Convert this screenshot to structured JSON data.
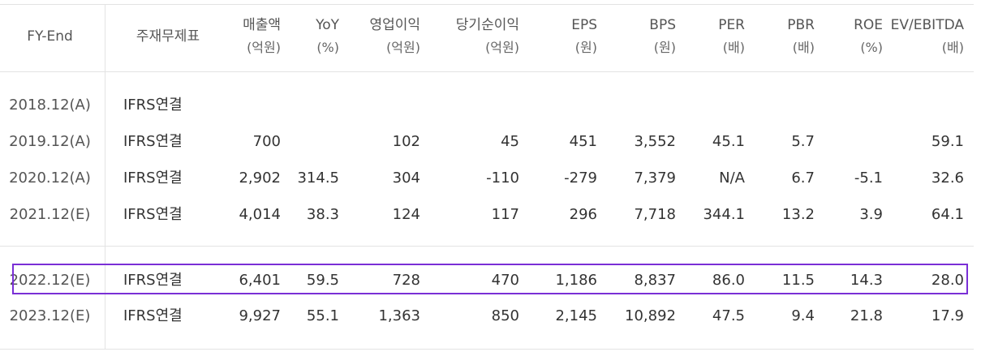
{
  "table": {
    "headers": [
      {
        "key": "fy",
        "line1": "FY-End",
        "line2": ""
      },
      {
        "key": "std",
        "line1": "주재무제표",
        "line2": ""
      },
      {
        "key": "sales",
        "line1": "매출액",
        "line2": "(억원)"
      },
      {
        "key": "yoy",
        "line1": "YoY",
        "line2": "(%)"
      },
      {
        "key": "op",
        "line1": "영업이익",
        "line2": "(억원)"
      },
      {
        "key": "net",
        "line1": "당기순이익",
        "line2": "(억원)"
      },
      {
        "key": "eps",
        "line1": "EPS",
        "line2": "(원)"
      },
      {
        "key": "bps",
        "line1": "BPS",
        "line2": "(원)"
      },
      {
        "key": "per",
        "line1": "PER",
        "line2": "(배)"
      },
      {
        "key": "pbr",
        "line1": "PBR",
        "line2": "(배)"
      },
      {
        "key": "roe",
        "line1": "ROE",
        "line2": "(%)"
      },
      {
        "key": "ev",
        "line1": "EV/EBITDA",
        "line2": "(배)"
      }
    ],
    "rows": [
      {
        "fy": "2018.12(A)",
        "std": "IFRS연결",
        "sales": "",
        "yoy": "",
        "op": "",
        "net": "",
        "eps": "",
        "bps": "",
        "per": "",
        "pbr": "",
        "roe": "",
        "ev": ""
      },
      {
        "fy": "2019.12(A)",
        "std": "IFRS연결",
        "sales": "700",
        "yoy": "",
        "op": "102",
        "net": "45",
        "eps": "451",
        "bps": "3,552",
        "per": "45.1",
        "pbr": "5.7",
        "roe": "",
        "ev": "59.1"
      },
      {
        "fy": "2020.12(A)",
        "std": "IFRS연결",
        "sales": "2,902",
        "yoy": "314.5",
        "op": "304",
        "net": "-110",
        "eps": "-279",
        "bps": "7,379",
        "per": "N/A",
        "pbr": "6.7",
        "roe": "-5.1",
        "ev": "32.6"
      },
      {
        "fy": "2021.12(E)",
        "std": "IFRS연결",
        "sales": "4,014",
        "yoy": "38.3",
        "op": "124",
        "net": "117",
        "eps": "296",
        "bps": "7,718",
        "per": "344.1",
        "pbr": "13.2",
        "roe": "3.9",
        "ev": "64.1"
      },
      {
        "fy": "2022.12(E)",
        "std": "IFRS연결",
        "sales": "6,401",
        "yoy": "59.5",
        "op": "728",
        "net": "470",
        "eps": "1,186",
        "bps": "8,837",
        "per": "86.0",
        "pbr": "11.5",
        "roe": "14.3",
        "ev": "28.0"
      },
      {
        "fy": "2023.12(E)",
        "std": "IFRS연결",
        "sales": "9,927",
        "yoy": "55.1",
        "op": "1,363",
        "net": "850",
        "eps": "2,145",
        "bps": "10,892",
        "per": "47.5",
        "pbr": "9.4",
        "roe": "21.8",
        "ev": "17.9"
      }
    ],
    "highlighted_row": "2022.12(E)",
    "highlight_color": "#7a2fd6"
  }
}
